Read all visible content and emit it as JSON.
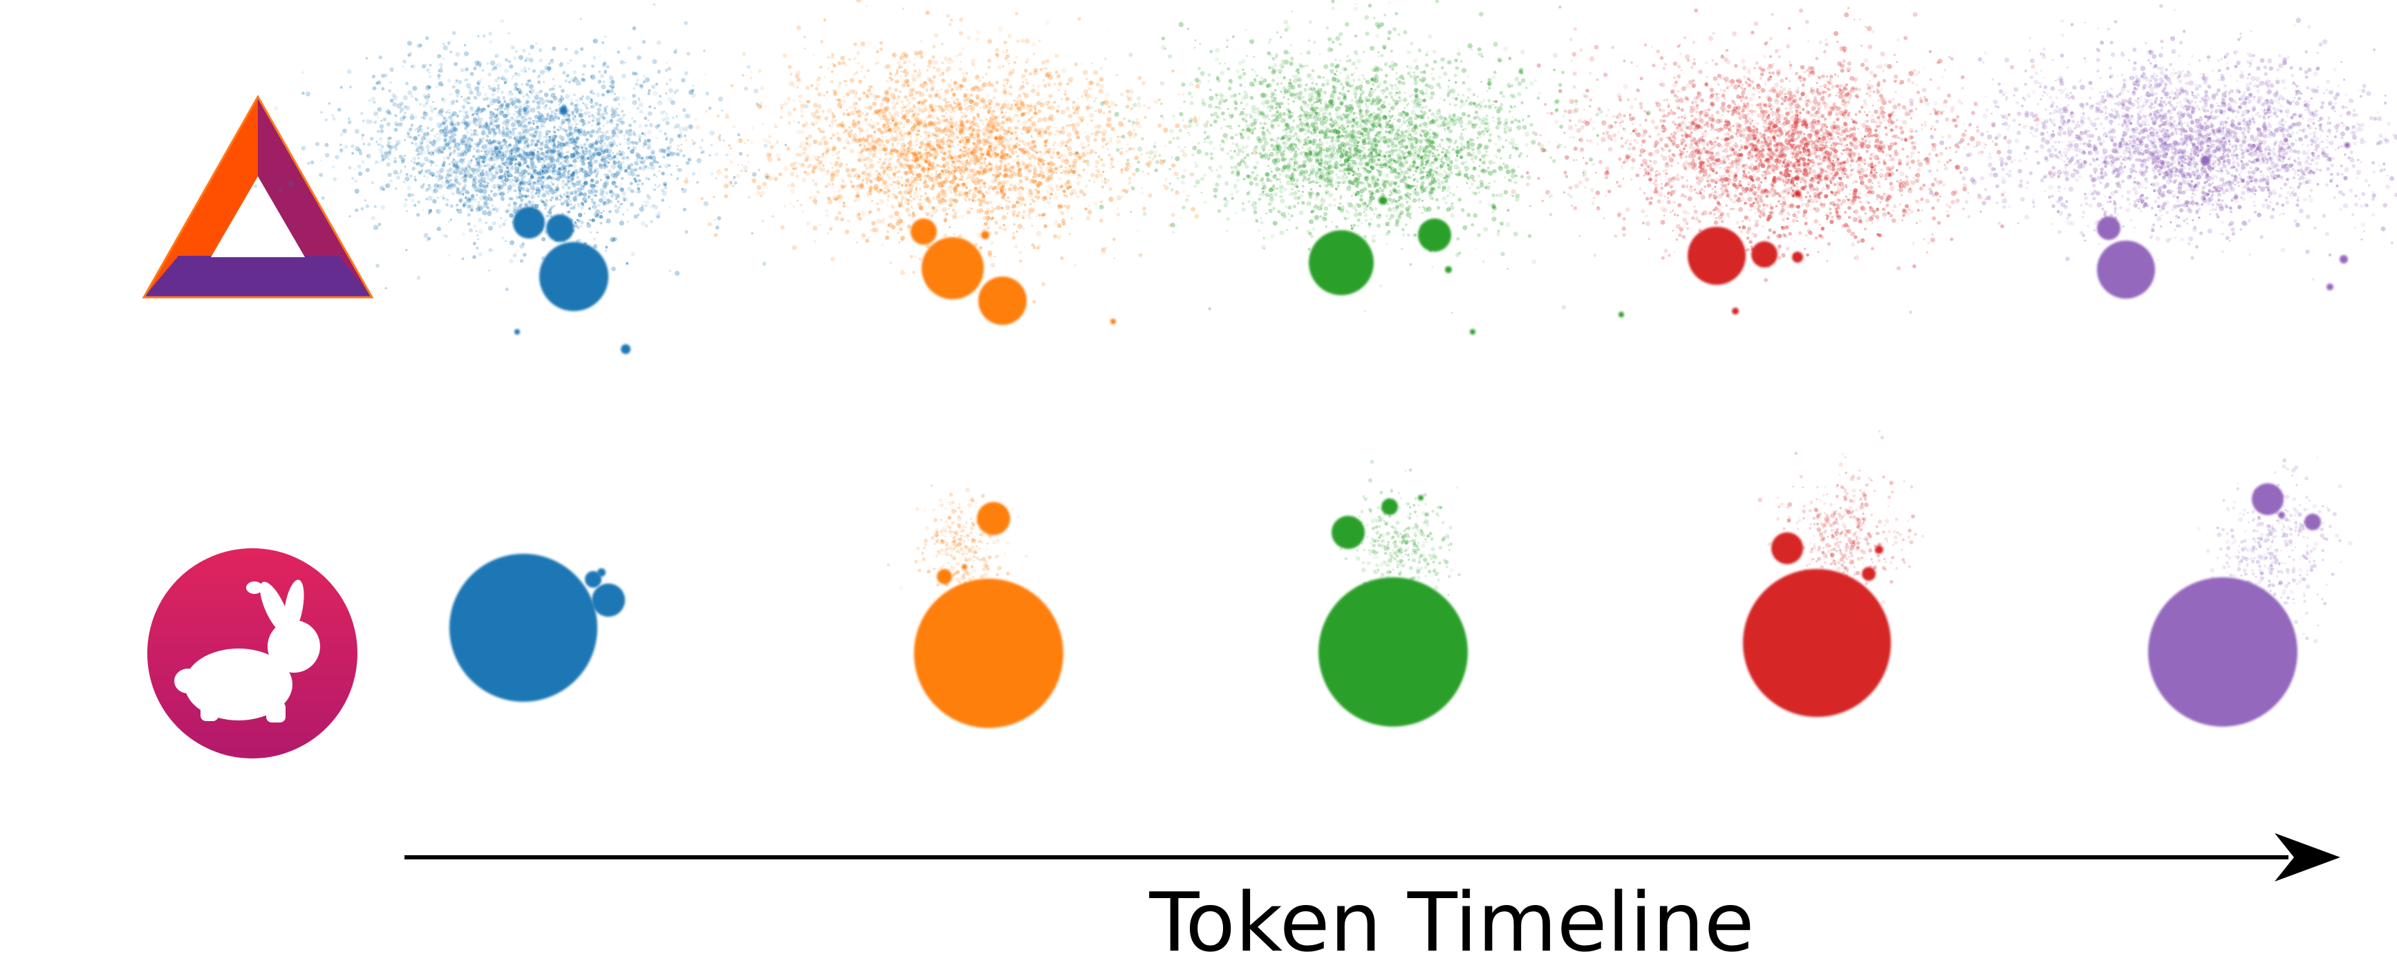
{
  "timeline": {
    "label": "Token Timeline"
  },
  "rows": [
    {
      "id": "top",
      "logo": "triangle-logo",
      "kind": "scattered-cluster"
    },
    {
      "id": "bottom",
      "logo": "rabbit-logo",
      "kind": "single-dominant-cluster"
    }
  ],
  "stages": [
    {
      "color": "#1f77b4",
      "name": "blue"
    },
    {
      "color": "#ff7f0e",
      "name": "orange"
    },
    {
      "color": "#2ca02c",
      "name": "green"
    },
    {
      "color": "#d62728",
      "name": "red"
    },
    {
      "color": "#9467bd",
      "name": "purple"
    }
  ],
  "logos": {
    "triangle": {
      "colors": [
        "#ff5000",
        "#9e1f63",
        "#662d91"
      ]
    },
    "rabbit": {
      "colors": [
        "#e0245e",
        "#b3196b"
      ]
    }
  },
  "arrow_color": "#000000"
}
